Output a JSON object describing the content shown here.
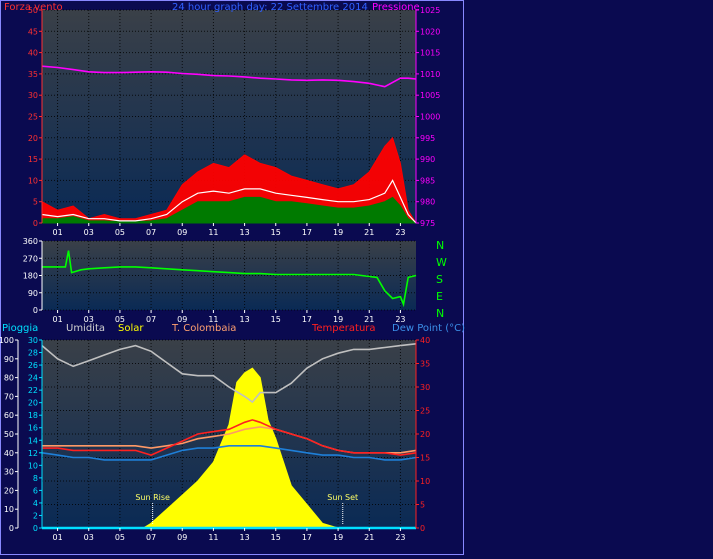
{
  "colors": {
    "background": "#0a0a50",
    "plot_bg_top": "#3a4048",
    "plot_bg_bottom": "#0a2a55",
    "axis": "#ffffff",
    "grid": "#000000",
    "wind_avg": "#007a00",
    "wind_gust": "#ff0000",
    "wind_line": "#ffffff",
    "pressure": "#ff00ff",
    "direction": "#00ff00",
    "rain": "#00e0ff",
    "humidity": "#c0c0c0",
    "solar": "#ffff00",
    "tcolombaia": "#ff9966",
    "temperature": "#ff2020",
    "dewpoint": "#1e7fd8"
  },
  "header": {
    "title": "24 hour graph day: 22 Settembre 2014",
    "wind_label": "Forza vento",
    "pressure_label": "Pressione"
  },
  "legend2": {
    "rain": "Pioggia",
    "humidity": "Umidita",
    "solar": "Solar",
    "tcolombaia": "T. Colombaia",
    "temperature": "Temperatura",
    "dewpoint": "Dew Point (°C)"
  },
  "annotations": {
    "sunrise": "Sun Rise",
    "sunset": "Sun Set"
  },
  "compass": [
    "N",
    "W",
    "S",
    "E",
    "N"
  ],
  "chart_data": [
    {
      "type": "line",
      "title": "24 hour graph day: 22 Settembre 2014",
      "x_ticks": [
        "01",
        "03",
        "05",
        "07",
        "09",
        "11",
        "13",
        "15",
        "17",
        "19",
        "21",
        "23"
      ],
      "xlim": [
        0,
        24
      ],
      "ylim_left": [
        0,
        50
      ],
      "yticks_left": [
        "0",
        "5",
        "10",
        "15",
        "20",
        "25",
        "30",
        "35",
        "40",
        "45",
        "50"
      ],
      "ylim_right": [
        975,
        1025
      ],
      "yticks_right": [
        "975",
        "980",
        "985",
        "990",
        "995",
        "1000",
        "1005",
        "1010",
        "1015",
        "1020",
        "1025"
      ],
      "series": [
        {
          "name": "Pressione",
          "axis": "right",
          "x": [
            0,
            1,
            2,
            3,
            4,
            5,
            6,
            7,
            8,
            9,
            10,
            11,
            12,
            13,
            14,
            15,
            16,
            17,
            18,
            19,
            20,
            21,
            21.5,
            22,
            22.5,
            23,
            23.5,
            24
          ],
          "y": [
            1011.8,
            1011.5,
            1011,
            1010.5,
            1010.3,
            1010.3,
            1010.4,
            1010.5,
            1010.4,
            1010.1,
            1009.9,
            1009.6,
            1009.5,
            1009.3,
            1009,
            1008.8,
            1008.6,
            1008.5,
            1008.6,
            1008.5,
            1008.2,
            1007.8,
            1007.4,
            1007,
            1008,
            1009,
            1009,
            1008.8
          ]
        },
        {
          "name": "wind gust",
          "axis": "left",
          "x": [
            0,
            1,
            2,
            3,
            4,
            5,
            6,
            7,
            8,
            9,
            10,
            11,
            12,
            13,
            14,
            15,
            16,
            17,
            18,
            19,
            20,
            21,
            22,
            22.5,
            23,
            23.5,
            24
          ],
          "y": [
            5,
            3,
            4,
            1,
            2,
            1,
            1,
            2,
            3,
            9,
            12,
            14,
            13,
            16,
            14,
            13,
            11,
            10,
            9,
            8,
            9,
            12,
            18,
            20,
            14,
            3,
            0
          ]
        },
        {
          "name": "wind average",
          "axis": "left",
          "x": [
            0,
            1,
            2,
            3,
            4,
            5,
            6,
            7,
            8,
            9,
            10,
            11,
            12,
            13,
            14,
            15,
            16,
            17,
            18,
            19,
            20,
            21,
            22,
            22.5,
            23,
            23.5,
            24
          ],
          "y": [
            1,
            1,
            1.5,
            0.5,
            0.5,
            0.3,
            0.3,
            0.5,
            1,
            3,
            5,
            5,
            5,
            6,
            6,
            5,
            5,
            4.5,
            4,
            3.5,
            3.5,
            4,
            5,
            6,
            4,
            1,
            0
          ]
        },
        {
          "name": "wind line",
          "axis": "left",
          "x": [
            0,
            1,
            2,
            3,
            4,
            5,
            6,
            7,
            8,
            9,
            10,
            11,
            12,
            13,
            14,
            15,
            16,
            17,
            18,
            19,
            20,
            21,
            22,
            22.5,
            23,
            23.5,
            24
          ],
          "y": [
            2,
            1.5,
            2,
            1,
            1,
            0.5,
            0.5,
            1,
            2,
            5,
            7,
            7.5,
            7,
            8,
            8,
            7,
            6.5,
            6,
            5.5,
            5,
            5,
            5.5,
            7,
            10,
            6,
            2,
            0
          ]
        }
      ]
    },
    {
      "type": "line",
      "title": "",
      "x_ticks": [
        "01",
        "03",
        "05",
        "07",
        "09",
        "11",
        "13",
        "15",
        "17",
        "19",
        "21",
        "23"
      ],
      "xlim": [
        0,
        24
      ],
      "ylim": [
        0,
        360
      ],
      "yticks": [
        "0",
        "90",
        "180",
        "270",
        "360"
      ],
      "series": [
        {
          "name": "wind direction",
          "x": [
            0,
            1.5,
            1.7,
            1.9,
            2.5,
            3,
            4,
            5,
            6,
            7,
            8,
            9,
            10,
            11,
            12,
            13,
            14,
            15,
            16,
            17,
            18,
            19,
            20,
            21,
            21.5,
            22,
            22.5,
            23,
            23.2,
            23.5,
            24
          ],
          "y": [
            225,
            225,
            310,
            195,
            210,
            215,
            220,
            225,
            225,
            220,
            215,
            210,
            205,
            200,
            195,
            190,
            190,
            185,
            185,
            185,
            185,
            185,
            185,
            175,
            170,
            100,
            60,
            70,
            30,
            170,
            180
          ]
        }
      ]
    },
    {
      "type": "area",
      "title": "",
      "x_ticks": [
        "01",
        "03",
        "05",
        "07",
        "09",
        "11",
        "13",
        "15",
        "17",
        "19",
        "21",
        "23"
      ],
      "xlim": [
        0,
        24
      ],
      "yticks_rain": [
        "0",
        "2",
        "4",
        "6",
        "8",
        "10",
        "12",
        "14",
        "16",
        "18",
        "20",
        "22",
        "24",
        "26",
        "28",
        "30"
      ],
      "yticks_humidity": [
        "0",
        "10",
        "20",
        "30",
        "40",
        "50",
        "60",
        "70",
        "80",
        "90",
        "100"
      ],
      "yticks_temperature": [
        "0",
        "5",
        "10",
        "15",
        "20",
        "25",
        "30",
        "35",
        "40"
      ],
      "series": [
        {
          "name": "Umidita",
          "axis": "humidity",
          "x": [
            0,
            1,
            2,
            3,
            4,
            5,
            6,
            7,
            8,
            9,
            10,
            11,
            12,
            13,
            13.5,
            14,
            15,
            16,
            17,
            18,
            19,
            20,
            21,
            22,
            23,
            24
          ],
          "y": [
            97,
            90,
            86,
            89,
            92,
            95,
            97,
            94,
            88,
            82,
            81,
            81,
            75,
            70,
            67,
            72,
            72,
            77,
            85,
            90,
            93,
            95,
            95,
            96,
            97,
            98
          ]
        },
        {
          "name": "Solar",
          "axis": "temperature",
          "x": [
            0,
            6.5,
            7,
            7.5,
            8,
            9,
            10,
            11,
            12,
            12.5,
            13,
            13.5,
            14,
            14.5,
            15,
            16,
            17,
            18,
            19,
            24
          ],
          "y": [
            0,
            0,
            1,
            2.5,
            4,
            7,
            10,
            14,
            22,
            31,
            33,
            34,
            32,
            23,
            19,
            9,
            5,
            1,
            0,
            0
          ]
        },
        {
          "name": "T. Colombaia",
          "axis": "temperature",
          "x": [
            0,
            1,
            2,
            3,
            4,
            5,
            6,
            7,
            8,
            9,
            10,
            11,
            12,
            13,
            14,
            15,
            16,
            17,
            18,
            19,
            20,
            21,
            22,
            23,
            24
          ],
          "y": [
            17.5,
            17.5,
            17.5,
            17.5,
            17.5,
            17.5,
            17.5,
            17,
            17.5,
            18,
            19,
            19.5,
            20,
            21,
            21.5,
            21,
            20,
            19,
            17.5,
            16.5,
            16,
            16,
            16,
            16,
            16.5
          ]
        },
        {
          "name": "Temperatura",
          "axis": "temperature",
          "x": [
            0,
            1,
            2,
            3,
            4,
            5,
            6,
            7,
            8,
            9,
            10,
            11,
            12,
            13,
            13.5,
            14,
            15,
            16,
            17,
            18,
            19,
            20,
            21,
            22,
            23,
            24
          ],
          "y": [
            17,
            17,
            16.5,
            16.5,
            16.5,
            16.5,
            16.5,
            15.5,
            17,
            18.5,
            20,
            20.5,
            21,
            22.5,
            23,
            22.5,
            21,
            20,
            19,
            17.5,
            16.5,
            16,
            16,
            16,
            15.5,
            16
          ]
        },
        {
          "name": "Dew Point (°C)",
          "axis": "temperature",
          "x": [
            0,
            1,
            2,
            3,
            4,
            5,
            6,
            7,
            8,
            9,
            10,
            11,
            12,
            13,
            14,
            15,
            16,
            17,
            18,
            19,
            20,
            21,
            22,
            23,
            24
          ],
          "y": [
            16,
            15.5,
            15,
            15,
            14.5,
            14.5,
            14.5,
            14.5,
            15.5,
            16.5,
            17,
            17,
            17.5,
            17.5,
            17.5,
            17,
            16.5,
            16,
            15.5,
            15.5,
            15,
            15,
            14.5,
            14.5,
            15
          ]
        },
        {
          "name": "Pioggia",
          "axis": "rain",
          "x": [
            0,
            24
          ],
          "y": [
            0,
            0
          ]
        }
      ],
      "annotations": [
        {
          "label": "Sun Rise",
          "x": 7.1
        },
        {
          "label": "Sun Set",
          "x": 19.3
        }
      ]
    }
  ]
}
